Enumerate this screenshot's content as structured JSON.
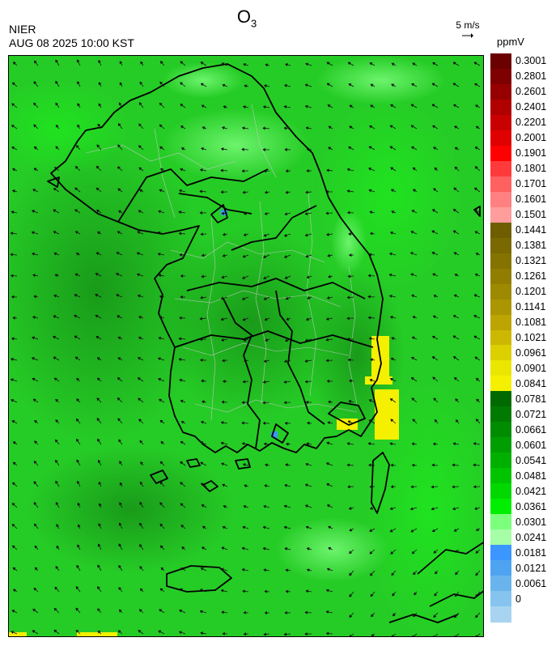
{
  "header": {
    "title_main": "O",
    "title_sub": "3",
    "agency": "NIER",
    "timestamp": "AUG 08 2025 10:00 KST"
  },
  "wind_reference": {
    "label": "5 m/s"
  },
  "colorbar": {
    "unit": "ppmV",
    "labels": [
      "0.3001",
      "0.2801",
      "0.2601",
      "0.2401",
      "0.2201",
      "0.2001",
      "0.1901",
      "0.1801",
      "0.1701",
      "0.1601",
      "0.1501",
      "0.1441",
      "0.1381",
      "0.1321",
      "0.1261",
      "0.1201",
      "0.1141",
      "0.1081",
      "0.1021",
      "0.0961",
      "0.0901",
      "0.0841",
      "0.0781",
      "0.0721",
      "0.0661",
      "0.0601",
      "0.0541",
      "0.0481",
      "0.0421",
      "0.0361",
      "0.0301",
      "0.0241",
      "0.0181",
      "0.0121",
      "0.0061",
      "0"
    ],
    "colors": [
      "#6b0000",
      "#7e0000",
      "#960000",
      "#b00000",
      "#c80000",
      "#e00000",
      "#ff0000",
      "#ff3a3a",
      "#ff6060",
      "#ff8080",
      "#ff9c9c",
      "#6e5e00",
      "#7a6800",
      "#857300",
      "#917d00",
      "#9e8a00",
      "#ab9500",
      "#bca500",
      "#ccb800",
      "#dcd000",
      "#eae600",
      "#f4f000",
      "#006a00",
      "#007a00",
      "#008c00",
      "#009e00",
      "#00b000",
      "#00c400",
      "#00d800",
      "#00ee00",
      "#7cff7c",
      "#a6ffa6",
      "#3c96ff",
      "#4ea4f0",
      "#6ab4ee",
      "#86c4ef",
      "#a8d4f2"
    ]
  },
  "map": {
    "legend_colors": {
      "low_ozone": "#3c96ff",
      "background_green": "#28d228",
      "dark_green": "#1a9c1a",
      "light_green": "#7cff7c",
      "high_ozone_yellow": "#f4f000",
      "coastline": "#000000",
      "boundary": "#bfbfbf"
    }
  }
}
